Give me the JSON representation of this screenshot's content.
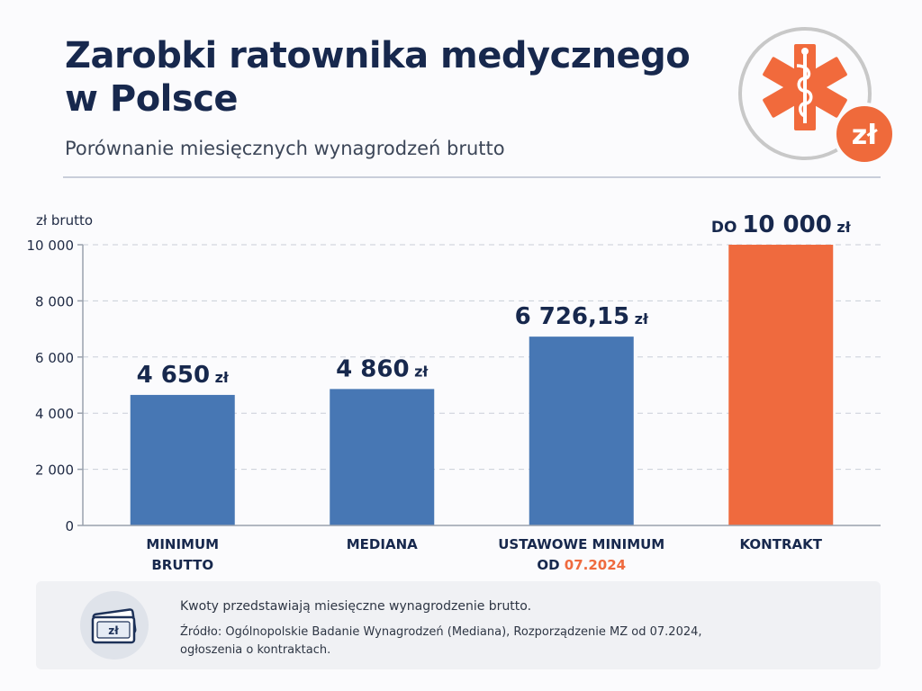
{
  "header": {
    "title": "Zarobki ratownika medycznego w Polsce",
    "subtitle": "Porównanie miesięcznych wynagrodzeń brutto"
  },
  "logo": {
    "icon": "star-of-life-icon",
    "badge_text": "zł",
    "colors": {
      "ring": "#c8c8c8",
      "star": "#f16a3c",
      "badge": "#ef6a3b"
    }
  },
  "chart_data": {
    "type": "bar",
    "ylabel": "zł brutto",
    "ylim": [
      0,
      10000
    ],
    "yticks": [
      0,
      2000,
      4000,
      6000,
      8000,
      10000
    ],
    "ytick_labels": [
      "0",
      "2 000",
      "4 000",
      "6 000",
      "8 000",
      "10 000"
    ],
    "grid": true,
    "categories": [
      {
        "line1": "MINIMUM",
        "line2": "BRUTTO",
        "line2_highlight": ""
      },
      {
        "line1": "MEDIANA",
        "line2": "",
        "line2_highlight": ""
      },
      {
        "line1": "USTAWOWE MINIMUM",
        "line2": "OD ",
        "line2_highlight": "07.2024"
      },
      {
        "line1": "KONTRAKT",
        "line2": "",
        "line2_highlight": ""
      }
    ],
    "values": [
      4650,
      4860,
      6726.15,
      10000
    ],
    "labels": [
      {
        "prefix": "",
        "amount": "4 650",
        "unit": "zł"
      },
      {
        "prefix": "",
        "amount": "4 860",
        "unit": "zł"
      },
      {
        "prefix": "",
        "amount": "6 726,15",
        "unit": "zł"
      },
      {
        "prefix": "DO",
        "amount": "10 000",
        "unit": "zł"
      }
    ],
    "colors": [
      "#4777b4",
      "#4777b4",
      "#4777b4",
      "#ef6a3e"
    ],
    "highlight_color": "#ef6a3e"
  },
  "footer": {
    "icon": "money-bill-icon",
    "icon_text": "zł",
    "note": "Kwoty przedstawiają miesięczne wynagrodzenie brutto.",
    "source": "Źródło: Ogólnopolskie Badanie Wynagrodzeń (Mediana), Rozporządzenie MZ od 07.2024, ogłoszenia o kontraktach."
  }
}
